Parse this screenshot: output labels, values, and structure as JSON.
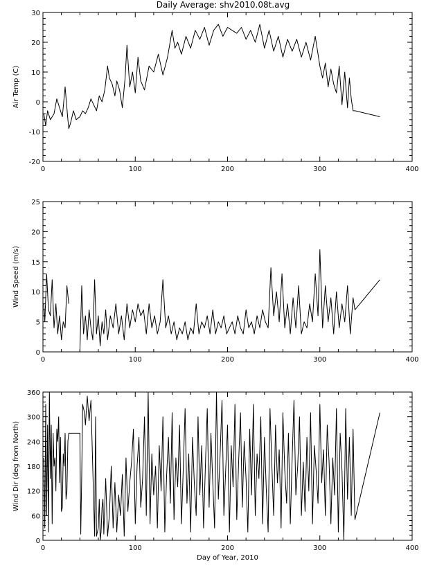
{
  "chart_data": [
    {
      "type": "line",
      "title": "Daily Average: shv2010.08t.avg",
      "xlabel": "",
      "ylabel": "Air Temp (C)",
      "xlim": [
        0,
        400
      ],
      "ylim": [
        -20,
        30
      ],
      "xticks": [
        0,
        100,
        200,
        300,
        400
      ],
      "yticks": [
        -20,
        -10,
        0,
        10,
        20,
        30
      ],
      "grid": false,
      "series": [
        {
          "x": [
            1,
            3,
            5,
            8,
            12,
            15,
            18,
            21,
            24,
            27,
            28,
            30,
            33,
            36,
            40,
            43,
            46,
            49,
            52,
            55,
            58,
            61,
            64,
            67,
            70,
            72,
            75,
            78,
            80,
            83,
            86,
            89,
            91,
            94,
            97,
            100,
            103,
            106,
            110,
            115,
            120,
            125,
            130,
            135,
            140,
            143,
            146,
            150,
            155,
            160,
            165,
            170,
            175,
            180,
            185,
            190,
            195,
            200,
            205,
            210,
            215,
            220,
            225,
            230,
            235,
            240,
            245,
            250,
            255,
            260,
            265,
            270,
            275,
            280,
            285,
            290,
            295,
            300,
            303,
            306,
            309,
            312,
            315,
            318,
            321,
            324,
            327,
            330,
            332,
            334,
            336,
            338,
            365
          ],
          "y": [
            -4,
            -8,
            -3,
            -6,
            -4,
            1,
            -2,
            -5,
            5,
            -6,
            -9,
            -7,
            -3,
            -6,
            -5,
            -3,
            -4,
            -2,
            1,
            -1,
            -3,
            2,
            0,
            4,
            12,
            8,
            6,
            2,
            7,
            4,
            -2,
            8,
            19,
            5,
            10,
            3,
            15,
            7,
            4,
            12,
            10,
            16,
            9,
            15,
            24,
            18,
            20,
            16,
            22,
            18,
            24,
            21,
            25,
            19,
            24,
            26,
            22,
            25,
            24,
            23,
            25,
            21,
            24,
            20,
            26,
            18,
            24,
            17,
            22,
            15,
            21,
            17,
            21,
            15,
            20,
            14,
            22,
            12,
            8,
            13,
            5,
            11,
            6,
            3,
            12,
            -1,
            10,
            -2,
            8,
            1,
            -3,
            -3,
            -5
          ]
        }
      ]
    },
    {
      "type": "line",
      "title": "",
      "xlabel": "",
      "ylabel": "Wind Speed (m/s)",
      "xlim": [
        0,
        400
      ],
      "ylim": [
        0,
        25
      ],
      "xticks": [
        0,
        100,
        200,
        300,
        400
      ],
      "yticks": [
        0,
        5,
        10,
        15,
        20,
        25
      ],
      "grid": false,
      "series": [
        {
          "x": [
            1,
            2,
            4,
            6,
            8,
            10,
            12,
            14,
            16,
            18,
            20,
            22,
            24,
            26,
            28
          ],
          "y": [
            8,
            5,
            13,
            7,
            6,
            12,
            4,
            8,
            3,
            6,
            2,
            5,
            4,
            11,
            8
          ]
        },
        {
          "x": [
            40,
            42,
            44,
            46,
            48,
            50,
            52,
            54,
            56,
            58,
            60,
            62,
            64,
            66,
            68,
            70,
            73,
            76,
            79,
            82,
            85,
            88,
            91,
            94,
            97,
            100,
            103,
            106,
            109,
            112,
            115,
            118,
            121,
            124,
            127,
            130,
            133,
            136,
            139,
            142,
            145,
            148,
            151,
            154,
            157,
            160,
            163,
            166,
            169,
            172,
            175,
            178,
            181,
            184,
            187,
            190,
            193,
            196,
            199,
            202,
            205,
            208,
            211,
            214,
            217,
            220,
            223,
            226,
            229,
            232,
            235,
            238,
            241,
            244,
            247,
            250,
            253,
            256,
            259,
            262,
            265,
            268,
            271,
            274,
            277,
            280,
            283,
            286,
            289,
            292,
            295,
            298,
            300,
            303,
            306,
            309,
            312,
            315,
            318,
            321,
            324,
            327,
            330,
            333,
            336,
            338,
            365
          ],
          "y": [
            0,
            11,
            3,
            6,
            2,
            7,
            4,
            2,
            12,
            3,
            6,
            1,
            5,
            3,
            7,
            2,
            6,
            4,
            8,
            3,
            6,
            2,
            8,
            4,
            7,
            5,
            8,
            6,
            7,
            3,
            8,
            4,
            6,
            3,
            5,
            12,
            4,
            6,
            3,
            5,
            2,
            4,
            3,
            5,
            2,
            4,
            3,
            8,
            3,
            5,
            4,
            6,
            3,
            7,
            3,
            5,
            4,
            6,
            3,
            4,
            5,
            3,
            6,
            4,
            3,
            7,
            4,
            5,
            3,
            6,
            4,
            7,
            5,
            4,
            14,
            6,
            10,
            5,
            13,
            4,
            8,
            3,
            9,
            4,
            11,
            3,
            5,
            4,
            8,
            5,
            13,
            6,
            17,
            4,
            11,
            5,
            9,
            3,
            10,
            4,
            8,
            5,
            11,
            3,
            9,
            7,
            12
          ]
        }
      ]
    },
    {
      "type": "line",
      "title": "",
      "xlabel": "Day of Year, 2010",
      "ylabel": "Wind Dir (deg from North)",
      "xlim": [
        0,
        400
      ],
      "ylim": [
        0,
        360
      ],
      "xticks": [
        0,
        100,
        200,
        300,
        400
      ],
      "yticks": [
        0,
        60,
        120,
        180,
        240,
        300,
        360
      ],
      "grid": false,
      "series": [
        {
          "x": [
            1,
            2,
            3,
            4,
            5,
            6,
            7,
            8,
            9,
            10,
            11,
            12,
            13,
            14,
            15,
            16,
            17,
            18,
            19,
            20,
            21,
            22,
            23,
            24,
            25,
            26,
            27,
            28,
            30,
            32,
            34,
            36,
            38,
            40,
            41,
            42,
            43,
            44,
            45,
            46,
            48,
            50,
            52,
            54,
            56,
            57,
            58,
            59,
            60,
            61,
            62,
            63,
            64,
            65,
            66,
            68,
            70,
            72,
            74,
            76,
            78,
            80,
            82,
            84,
            86,
            88,
            90,
            92,
            94,
            96,
            98,
            100,
            102,
            104,
            106,
            108,
            110,
            112,
            114,
            116,
            118,
            120,
            122,
            124,
            126,
            128,
            130,
            132,
            134,
            136,
            138,
            140,
            142,
            144,
            146,
            148,
            150,
            152,
            154,
            156,
            158,
            160,
            162,
            164,
            166,
            168,
            170,
            172,
            174,
            176,
            178,
            180,
            182,
            184,
            186,
            188,
            190,
            192,
            194,
            196,
            198,
            200,
            202,
            204,
            206,
            208,
            210,
            212,
            214,
            216,
            218,
            220,
            222,
            224,
            226,
            228,
            230,
            232,
            234,
            236,
            238,
            240,
            242,
            244,
            246,
            248,
            250,
            252,
            254,
            256,
            258,
            260,
            262,
            264,
            266,
            268,
            270,
            272,
            274,
            276,
            278,
            280,
            282,
            284,
            286,
            288,
            290,
            292,
            294,
            296,
            298,
            300,
            302,
            304,
            306,
            308,
            310,
            312,
            314,
            316,
            318,
            320,
            322,
            324,
            326,
            328,
            330,
            332,
            334,
            336,
            338,
            365
          ],
          "y": [
            200,
            30,
            330,
            60,
            280,
            20,
            360,
            150,
            280,
            40,
            260,
            180,
            200,
            120,
            270,
            240,
            300,
            140,
            250,
            70,
            80,
            210,
            180,
            260,
            100,
            120,
            240,
            260,
            260,
            260,
            260,
            260,
            260,
            260,
            15,
            160,
            330,
            320,
            310,
            280,
            350,
            290,
            340,
            170,
            10,
            300,
            10,
            20,
            30,
            100,
            0,
            20,
            80,
            100,
            15,
            150,
            10,
            60,
            180,
            30,
            140,
            20,
            110,
            60,
            160,
            10,
            200,
            70,
            140,
            190,
            270,
            40,
            180,
            250,
            80,
            150,
            300,
            60,
            360,
            40,
            210,
            110,
            180,
            30,
            230,
            120,
            300,
            20,
            160,
            250,
            90,
            310,
            50,
            200,
            130,
            280,
            40,
            170,
            320,
            90,
            210,
            20,
            250,
            140,
            60,
            300,
            110,
            230,
            30,
            180,
            320,
            80,
            260,
            140,
            30,
            360,
            100,
            210,
            340,
            60,
            170,
            280,
            20,
            230,
            130,
            330,
            50,
            190,
            310,
            80,
            240,
            150,
            20,
            270,
            110,
            330,
            60,
            210,
            150,
            300,
            40,
            250,
            120,
            20,
            320,
            180,
            60,
            280,
            140,
            220,
            30,
            310,
            170,
            90,
            260,
            40,
            200,
            340,
            110,
            180,
            300,
            60,
            190,
            70,
            250,
            120,
            310,
            40,
            230,
            170,
            90,
            330,
            140,
            220,
            60,
            280,
            190,
            40,
            200,
            110,
            320,
            20,
            260,
            170,
            0,
            320,
            100,
            250,
            60,
            270,
            50,
            310
          ]
        }
      ]
    }
  ]
}
